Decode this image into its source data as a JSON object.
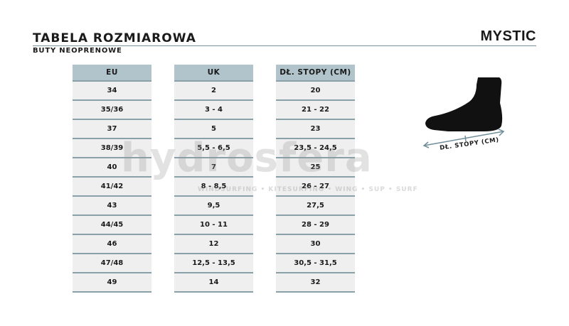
{
  "header": {
    "title": "TABELA ROZMIAROWA",
    "subtitle": "BUTY NEOPRENOWE",
    "brand": "MYSTIC"
  },
  "table": {
    "columns": [
      {
        "label": "EU",
        "values": [
          "34",
          "35/36",
          "37",
          "38/39",
          "40",
          "41/42",
          "43",
          "44/45",
          "46",
          "47/48",
          "49"
        ]
      },
      {
        "label": "UK",
        "values": [
          "2",
          "3 - 4",
          "5",
          "5,5 - 6,5",
          "7",
          "8 - 8,5",
          "9,5",
          "10 - 11",
          "12",
          "12,5 - 13,5",
          "14"
        ]
      },
      {
        "label": "DŁ. STOPY (CM)",
        "values": [
          "20",
          "21 - 22",
          "23",
          "23,5 - 24,5",
          "25",
          "26 - 27",
          "27,5",
          "28 - 29",
          "30",
          "30,5 - 31,5",
          "32"
        ]
      }
    ]
  },
  "diagram": {
    "label": "DŁ. STOPY (CM)",
    "icon": "foot-icon"
  },
  "watermark": {
    "text": "hydrosfera",
    "tagline": "WINDSURFING • KITESURFING • WING • SUP • SURF"
  },
  "colors": {
    "header_bg": "#b2c4cb",
    "row_bg": "#efefef",
    "accent": "#7c939c"
  }
}
